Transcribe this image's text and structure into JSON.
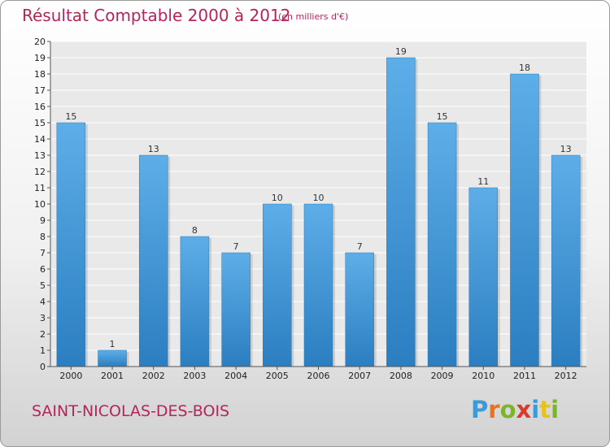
{
  "header": {
    "title": "Résultat Comptable 2000 à 2012",
    "subtitle": "(en milliers d'€)"
  },
  "footer": {
    "place": "SAINT-NICOLAS-DES-BOIS",
    "logo_letters": [
      "P",
      "r",
      "o",
      "x",
      "i",
      "t",
      "i"
    ],
    "logo_colors": [
      "#3c9ad8",
      "#e8731c",
      "#7cb52a",
      "#d93a2b",
      "#3c9ad8",
      "#e8c21c",
      "#7cb52a"
    ]
  },
  "chart_data": {
    "type": "bar",
    "title": "Résultat Comptable 2000 à 2012",
    "subtitle": "(en milliers d'€)",
    "categories": [
      "2000",
      "2001",
      "2002",
      "2003",
      "2004",
      "2005",
      "2006",
      "2007",
      "2008",
      "2009",
      "2010",
      "2011",
      "2012"
    ],
    "values": [
      15,
      1,
      13,
      8,
      7,
      10,
      10,
      7,
      19,
      15,
      11,
      18,
      13
    ],
    "ylim": [
      0,
      20
    ],
    "yticks": [
      0,
      1,
      2,
      3,
      4,
      5,
      6,
      7,
      8,
      9,
      10,
      11,
      12,
      13,
      14,
      15,
      16,
      17,
      18,
      19,
      20
    ],
    "grid": true,
    "bar_color_top": "#5daee8",
    "bar_color_bottom": "#2b7ec0"
  }
}
